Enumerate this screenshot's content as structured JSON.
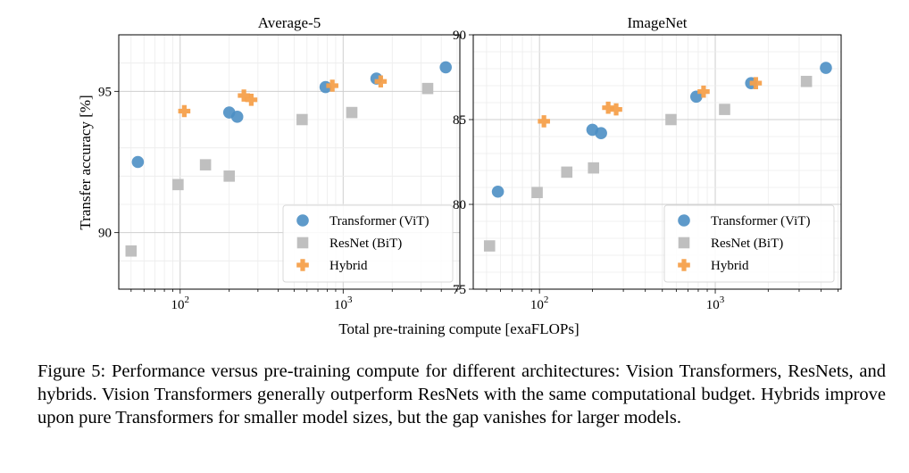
{
  "figure": {
    "xlabel": "Total pre-training compute [exaFLOPs]",
    "ylabel": "Transfer accuracy [%]",
    "caption": "Figure 5: Performance versus pre-training compute for different architectures: Vision Transformers, ResNets, and hybrids. Vision Transformers generally outperform ResNets with the same computational budget. Hybrids improve upon pure Transformers for smaller model sizes, but the gap vanishes for larger models.",
    "colors": {
      "Transformer (ViT)": "#4c8fc4",
      "ResNet (BiT)": "#bfbfbf",
      "Hybrid": "#f5a04b"
    }
  },
  "chart_data": [
    {
      "type": "scatter",
      "title": "Average-5",
      "xscale": "log",
      "xlim": [
        42,
        5200
      ],
      "ylim": [
        88,
        97
      ],
      "yticks": [
        90,
        95
      ],
      "xticks": [
        100,
        1000
      ],
      "xtick_labels": [
        [
          "10",
          "2"
        ],
        [
          "10",
          "3"
        ]
      ],
      "legend_position": "lower-right",
      "series": [
        {
          "name": "Transformer (ViT)",
          "marker": "circle",
          "x": [
            55,
            200,
            224,
            780,
            1600,
            4260
          ],
          "y": [
            92.5,
            94.25,
            94.1,
            95.15,
            95.45,
            95.85
          ]
        },
        {
          "name": "ResNet (BiT)",
          "marker": "square",
          "x": [
            50,
            97,
            143,
            200,
            560,
            1130,
            3300
          ],
          "y": [
            89.35,
            91.7,
            92.4,
            92.0,
            94.0,
            94.25,
            95.1
          ]
        },
        {
          "name": "Hybrid",
          "marker": "plus",
          "x": [
            106,
            246,
            273,
            858,
            1700
          ],
          "y": [
            94.3,
            94.85,
            94.7,
            95.2,
            95.35
          ]
        }
      ]
    },
    {
      "type": "scatter",
      "title": "ImageNet",
      "xscale": "log",
      "xlim": [
        42,
        5200
      ],
      "ylim": [
        75,
        90
      ],
      "yticks": [
        75,
        80,
        85,
        90
      ],
      "xticks": [
        100,
        1000
      ],
      "xtick_labels": [
        [
          "10",
          "2"
        ],
        [
          "10",
          "3"
        ]
      ],
      "legend_position": "lower-right",
      "series": [
        {
          "name": "Transformer (ViT)",
          "marker": "circle",
          "x": [
            58,
            200,
            224,
            780,
            1600,
            4260
          ],
          "y": [
            80.75,
            84.4,
            84.2,
            86.35,
            87.15,
            88.05
          ]
        },
        {
          "name": "ResNet (BiT)",
          "marker": "square",
          "x": [
            52,
            97,
            143,
            203,
            560,
            1130,
            3300
          ],
          "y": [
            77.55,
            80.7,
            81.9,
            82.15,
            85.0,
            85.6,
            87.25
          ]
        },
        {
          "name": "Hybrid",
          "marker": "plus",
          "x": [
            106,
            246,
            273,
            858,
            1700
          ],
          "y": [
            84.9,
            85.7,
            85.6,
            86.65,
            87.15
          ]
        }
      ]
    }
  ]
}
